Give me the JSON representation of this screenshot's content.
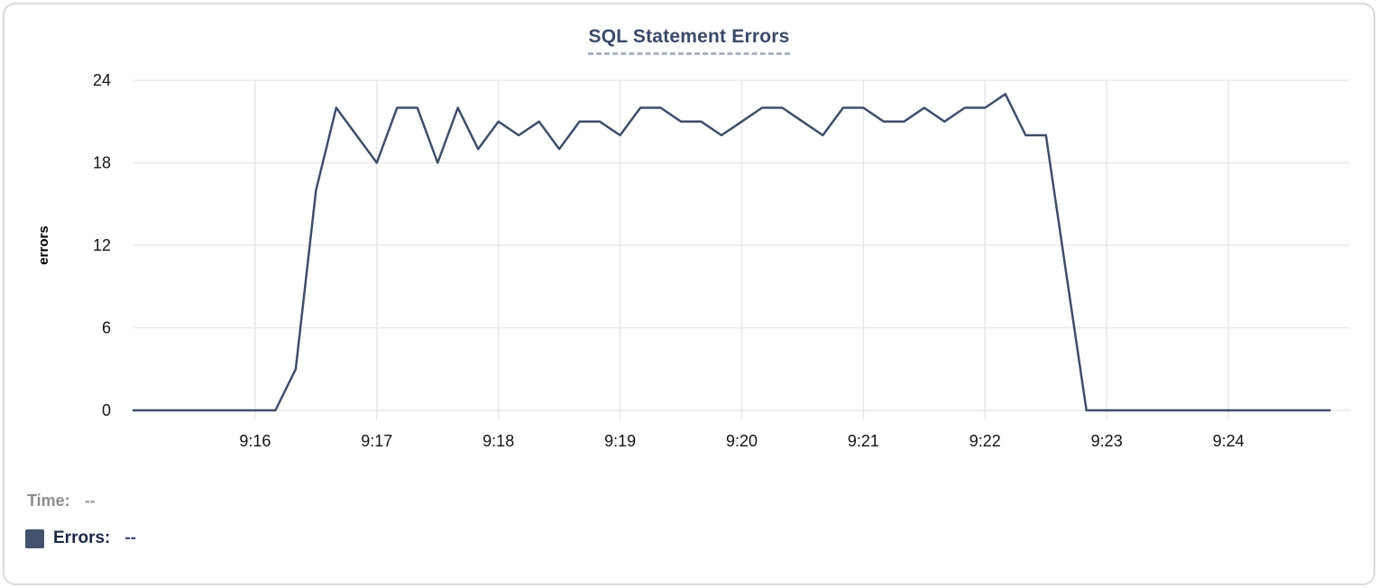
{
  "chart": {
    "title": "SQL Statement Errors",
    "y_axis": {
      "label": "errors",
      "ticks": [
        0,
        6,
        12,
        18,
        24
      ],
      "max": 24
    },
    "x_axis": {
      "tick_labels": [
        "9:16",
        "9:17",
        "9:18",
        "9:19",
        "9:20",
        "9:21",
        "9:22",
        "9:23",
        "9:24"
      ],
      "start": "9:15:00",
      "end": "9:25:00"
    },
    "colors": {
      "line": "#3e4e6a",
      "grid": "#e8e8e8",
      "title": "#3b4a68",
      "tick_text": "#141414",
      "axis_label": "#000000"
    }
  },
  "chart_data": {
    "type": "line",
    "title": "SQL Statement Errors",
    "xlabel": "",
    "ylabel": "errors",
    "ylim": [
      0,
      24
    ],
    "y_ticks": [
      0,
      6,
      12,
      18,
      24
    ],
    "x_tick_labels": [
      "9:16",
      "9:17",
      "9:18",
      "9:19",
      "9:20",
      "9:21",
      "9:22",
      "9:23",
      "9:24"
    ],
    "grid": true,
    "legend_position": "bottom-left",
    "series_name": "Errors",
    "x": [
      "9:15:00",
      "9:15:10",
      "9:15:20",
      "9:15:30",
      "9:15:40",
      "9:15:50",
      "9:16:00",
      "9:16:10",
      "9:16:20",
      "9:16:30",
      "9:16:40",
      "9:16:50",
      "9:17:00",
      "9:17:10",
      "9:17:20",
      "9:17:30",
      "9:17:40",
      "9:17:50",
      "9:18:00",
      "9:18:10",
      "9:18:20",
      "9:18:30",
      "9:18:40",
      "9:18:50",
      "9:19:00",
      "9:19:10",
      "9:19:20",
      "9:19:30",
      "9:19:40",
      "9:19:50",
      "9:20:00",
      "9:20:10",
      "9:20:20",
      "9:20:30",
      "9:20:40",
      "9:20:50",
      "9:21:00",
      "9:21:10",
      "9:21:20",
      "9:21:30",
      "9:21:40",
      "9:21:50",
      "9:22:00",
      "9:22:10",
      "9:22:20",
      "9:22:30",
      "9:22:40",
      "9:22:50",
      "9:23:00",
      "9:23:10",
      "9:23:20",
      "9:23:30",
      "9:23:40",
      "9:23:50",
      "9:24:00",
      "9:24:10",
      "9:24:20",
      "9:24:30",
      "9:24:40",
      "9:24:50"
    ],
    "values": [
      0,
      0,
      0,
      0,
      0,
      0,
      0,
      0,
      3,
      16,
      22,
      20,
      18,
      22,
      22,
      18,
      22,
      19,
      21,
      20,
      21,
      19,
      21,
      21,
      20,
      22,
      22,
      21,
      21,
      20,
      21,
      22,
      22,
      21,
      20,
      22,
      22,
      21,
      21,
      22,
      21,
      22,
      22,
      23,
      20,
      20,
      10,
      0,
      0,
      0,
      0,
      0,
      0,
      0,
      0,
      0,
      0,
      0,
      0,
      0
    ]
  },
  "legend": {
    "time_label": "Time:",
    "time_value": "--",
    "errors_label": "Errors:",
    "errors_value": "--",
    "swatch_color": "#44536d"
  }
}
